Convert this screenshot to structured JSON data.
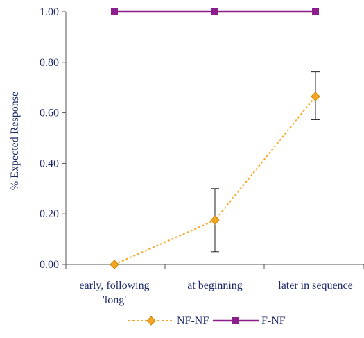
{
  "chart_data": {
    "type": "line",
    "categories": [
      "early, following 'long'",
      "at beginning",
      "later in sequence"
    ],
    "category_lines": [
      [
        "early, following",
        "'long'"
      ],
      [
        "at beginning"
      ],
      [
        "later in sequence"
      ]
    ],
    "ylabel": "% Expected Response",
    "xlabel": "",
    "ylim": [
      0,
      1
    ],
    "yticks": [
      "0.00",
      "0.20",
      "0.40",
      "0.60",
      "0.80",
      "1.00"
    ],
    "ytick_values": [
      0,
      0.2,
      0.4,
      0.6,
      0.8,
      1.0
    ],
    "grid": false,
    "legend": "bottom",
    "series": [
      {
        "name": "NF-NF",
        "values": [
          0.0,
          0.175,
          0.665
        ],
        "error_low": [
          null,
          0.05,
          0.573
        ],
        "error_high": [
          null,
          0.3,
          0.762
        ],
        "color": "#f5a623",
        "line_style": "dotted",
        "marker": "diamond"
      },
      {
        "name": "F-NF",
        "values": [
          1.0,
          1.0,
          1.0
        ],
        "color": "#8b1e8b",
        "line_style": "solid",
        "marker": "square"
      }
    ]
  }
}
